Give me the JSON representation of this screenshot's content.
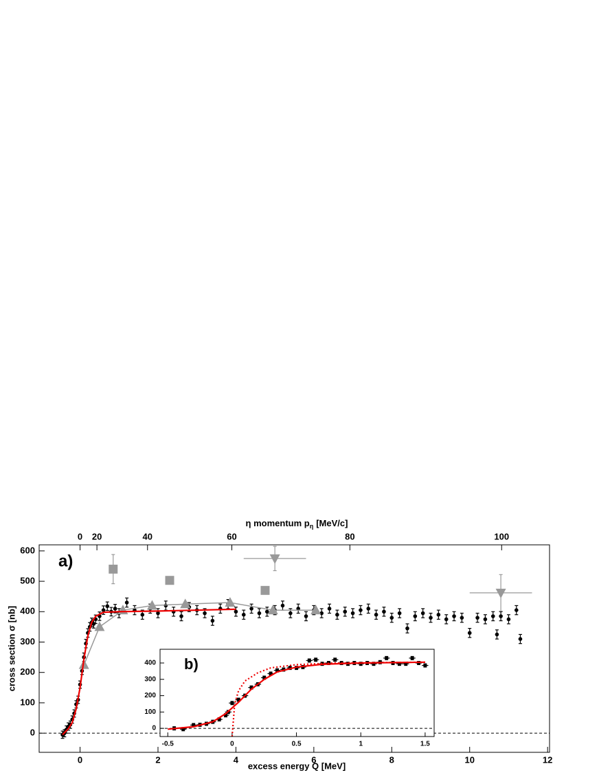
{
  "chart_data": [
    {
      "type": "scatter",
      "xlabel": "excess energy Q [MeV]",
      "ylabel": "cross section σ [nb]",
      "top_xlabel": [
        "η momentum p",
        "η",
        "[MeV/c]"
      ],
      "annotation": "a)",
      "xlim": [
        -1.05,
        12.05
      ],
      "ylim": [
        -63,
        620
      ],
      "xticks": [
        0,
        2,
        4,
        6,
        8,
        10,
        12
      ],
      "yticks": [
        0,
        100,
        200,
        300,
        400,
        500,
        600
      ],
      "top_xticks": [
        0,
        20,
        40,
        60,
        80,
        100
      ],
      "series": [
        {
          "marker": "circle",
          "color": "#000000",
          "x": [
            -0.45,
            -0.4,
            -0.35,
            -0.3,
            -0.25,
            -0.2,
            -0.15,
            -0.1,
            -0.05,
            0,
            0.05,
            0.1,
            0.15,
            0.2,
            0.25,
            0.3,
            0.35,
            0.4,
            0.5,
            0.6,
            0.7,
            0.8,
            0.9,
            1.0,
            1.2,
            1.4,
            1.6,
            1.8,
            2.0,
            2.2,
            2.4,
            2.6,
            2.8,
            3.0,
            3.2,
            3.4,
            3.6,
            3.8,
            4.0,
            4.2,
            4.4,
            4.6,
            4.8,
            5.0,
            5.2,
            5.4,
            5.6,
            5.8,
            6.0,
            6.2,
            6.4,
            6.6,
            6.8,
            7.0,
            7.2,
            7.4,
            7.6,
            7.8,
            8.0,
            8.2,
            8.4,
            8.6,
            8.8,
            9.0,
            9.2,
            9.4,
            9.6,
            9.8,
            10.0,
            10.2,
            10.4,
            10.6,
            10.7,
            10.8,
            11.0,
            11.2,
            11.3
          ],
          "values": [
            -5,
            0,
            12,
            22,
            28,
            45,
            65,
            95,
            110,
            160,
            205,
            250,
            295,
            330,
            350,
            365,
            360,
            375,
            385,
            405,
            418,
            400,
            410,
            395,
            430,
            405,
            390,
            410,
            395,
            420,
            400,
            385,
            415,
            405,
            395,
            370,
            410,
            425,
            400,
            390,
            410,
            395,
            400,
            405,
            420,
            395,
            410,
            385,
            405,
            395,
            410,
            390,
            400,
            395,
            405,
            410,
            390,
            400,
            380,
            395,
            345,
            385,
            395,
            380,
            390,
            375,
            385,
            380,
            330,
            380,
            375,
            385,
            325,
            385,
            375,
            405,
            310
          ],
          "errors": [
            12,
            12,
            12,
            12,
            12,
            12,
            12,
            12,
            12,
            12,
            12,
            14,
            14,
            14,
            14,
            14,
            14,
            14,
            14,
            14,
            14,
            14,
            14,
            15,
            15,
            15,
            15,
            15,
            15,
            15,
            15,
            15,
            15,
            15,
            15,
            15,
            15,
            15,
            15,
            15,
            15,
            15,
            15,
            15,
            15,
            15,
            15,
            15,
            15,
            15,
            15,
            15,
            15,
            15,
            15,
            15,
            15,
            15,
            15,
            15,
            15,
            15,
            15,
            15,
            15,
            15,
            15,
            15,
            15,
            15,
            15,
            15,
            15,
            15,
            15,
            15,
            15
          ]
        },
        {
          "marker": "triangle",
          "color": "#999999",
          "line": true,
          "x": [
            0.1,
            0.5,
            1.1,
            1.85,
            2.7,
            3.85,
            4.95,
            6.05
          ],
          "values": [
            225,
            350,
            405,
            420,
            425,
            430,
            405,
            405
          ]
        },
        {
          "marker": "square",
          "color": "#999999",
          "x": [
            0.85,
            2.3,
            4.75
          ],
          "values": [
            540,
            503,
            470
          ],
          "errors": [
            48,
            10,
            10
          ]
        },
        {
          "marker": "triangle-down",
          "color": "#999999",
          "x": [
            5.0,
            10.8
          ],
          "values": [
            575,
            462
          ],
          "errors": [
            40,
            60
          ],
          "xerr": [
            0.8,
            0.8
          ]
        },
        {
          "marker": "none",
          "color": "#ee0000",
          "line": true,
          "x": [
            -0.45,
            -0.3,
            -0.2,
            -0.1,
            0,
            0.1,
            0.2,
            0.3,
            0.4,
            0.6,
            1.0,
            2,
            3,
            4
          ],
          "values": [
            -5,
            15,
            35,
            80,
            150,
            245,
            320,
            365,
            385,
            398,
            400,
            402,
            405,
            408
          ]
        }
      ]
    },
    {
      "type": "scatter",
      "annotation": "b)",
      "xlim": [
        -0.56,
        1.57
      ],
      "ylim": [
        -50,
        484
      ],
      "xticks": [
        -0.5,
        0,
        0.5,
        1,
        1.5
      ],
      "yticks": [
        0,
        100,
        200,
        300,
        400
      ],
      "series": [
        {
          "marker": "circle",
          "color": "#000000",
          "x": [
            -0.45,
            -0.38,
            -0.3,
            -0.25,
            -0.2,
            -0.15,
            -0.1,
            -0.05,
            -0.03,
            0,
            0.05,
            0.1,
            0.15,
            0.2,
            0.25,
            0.3,
            0.35,
            0.4,
            0.45,
            0.5,
            0.55,
            0.6,
            0.65,
            0.7,
            0.75,
            0.8,
            0.85,
            0.9,
            0.95,
            1.0,
            1.05,
            1.1,
            1.15,
            1.2,
            1.25,
            1.3,
            1.35,
            1.4,
            1.45,
            1.5
          ],
          "values": [
            0,
            -5,
            20,
            22,
            28,
            40,
            55,
            80,
            100,
            155,
            175,
            200,
            250,
            270,
            310,
            335,
            355,
            360,
            370,
            370,
            375,
            415,
            420,
            395,
            400,
            420,
            400,
            395,
            400,
            395,
            400,
            395,
            405,
            430,
            400,
            395,
            395,
            430,
            400,
            385
          ],
          "errors": [
            10,
            10,
            10,
            10,
            10,
            10,
            10,
            10,
            10,
            10,
            10,
            10,
            10,
            10,
            10,
            10,
            10,
            10,
            10,
            10,
            10,
            10,
            10,
            10,
            10,
            10,
            10,
            10,
            10,
            10,
            10,
            10,
            10,
            10,
            10,
            10,
            10,
            10,
            10,
            10
          ],
          "xerr": 0.025
        },
        {
          "marker": "none",
          "color": "#ee0000",
          "line": true,
          "x": [
            -0.5,
            -0.3,
            -0.15,
            -0.05,
            0.05,
            0.15,
            0.25,
            0.35,
            0.5,
            0.7,
            1.0,
            1.5
          ],
          "values": [
            -5,
            10,
            40,
            90,
            160,
            240,
            300,
            345,
            375,
            392,
            400,
            405
          ]
        },
        {
          "marker": "none",
          "color": "#ee0000",
          "line": true,
          "dash": "dotted",
          "x": [
            0,
            0.02,
            0.05,
            0.1,
            0.2,
            0.3,
            0.5,
            0.8,
            1.5
          ],
          "values": [
            -50,
            150,
            230,
            290,
            340,
            370,
            390,
            400,
            405
          ]
        }
      ]
    }
  ]
}
